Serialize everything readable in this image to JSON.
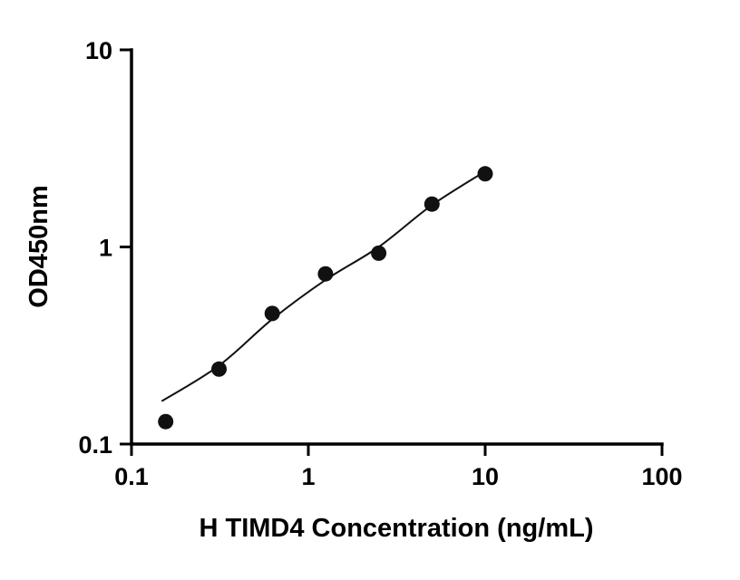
{
  "chart_data": {
    "type": "scatter",
    "title": "",
    "xlabel": "H TIMD4 Concentration (ng/mL)",
    "ylabel": "OD450nm",
    "x_scale": "log",
    "y_scale": "log",
    "xlim": [
      0.1,
      100
    ],
    "ylim": [
      0.1,
      10
    ],
    "x_ticks": [
      0.1,
      1,
      10,
      100
    ],
    "x_tick_labels": [
      "0.1",
      "1",
      "10",
      "100"
    ],
    "y_ticks": [
      0.1,
      1,
      10
    ],
    "y_tick_labels": [
      "0.1",
      "1",
      "10"
    ],
    "grid": false,
    "legend": false,
    "marker_color": "#111111",
    "line_color": "#111111",
    "axis_color": "#000000",
    "points": [
      {
        "x": 0.156,
        "y": 0.13
      },
      {
        "x": 0.3125,
        "y": 0.24
      },
      {
        "x": 0.625,
        "y": 0.46
      },
      {
        "x": 1.25,
        "y": 0.73
      },
      {
        "x": 2.5,
        "y": 0.93
      },
      {
        "x": 5,
        "y": 1.65
      },
      {
        "x": 10,
        "y": 2.35
      }
    ],
    "trend_line": [
      {
        "x": 0.148,
        "y": 0.165
      },
      {
        "x": 0.3125,
        "y": 0.25
      },
      {
        "x": 0.625,
        "y": 0.43
      },
      {
        "x": 1.25,
        "y": 0.68
      },
      {
        "x": 2.5,
        "y": 1.0
      },
      {
        "x": 5,
        "y": 1.63
      },
      {
        "x": 10.4,
        "y": 2.47
      }
    ]
  }
}
